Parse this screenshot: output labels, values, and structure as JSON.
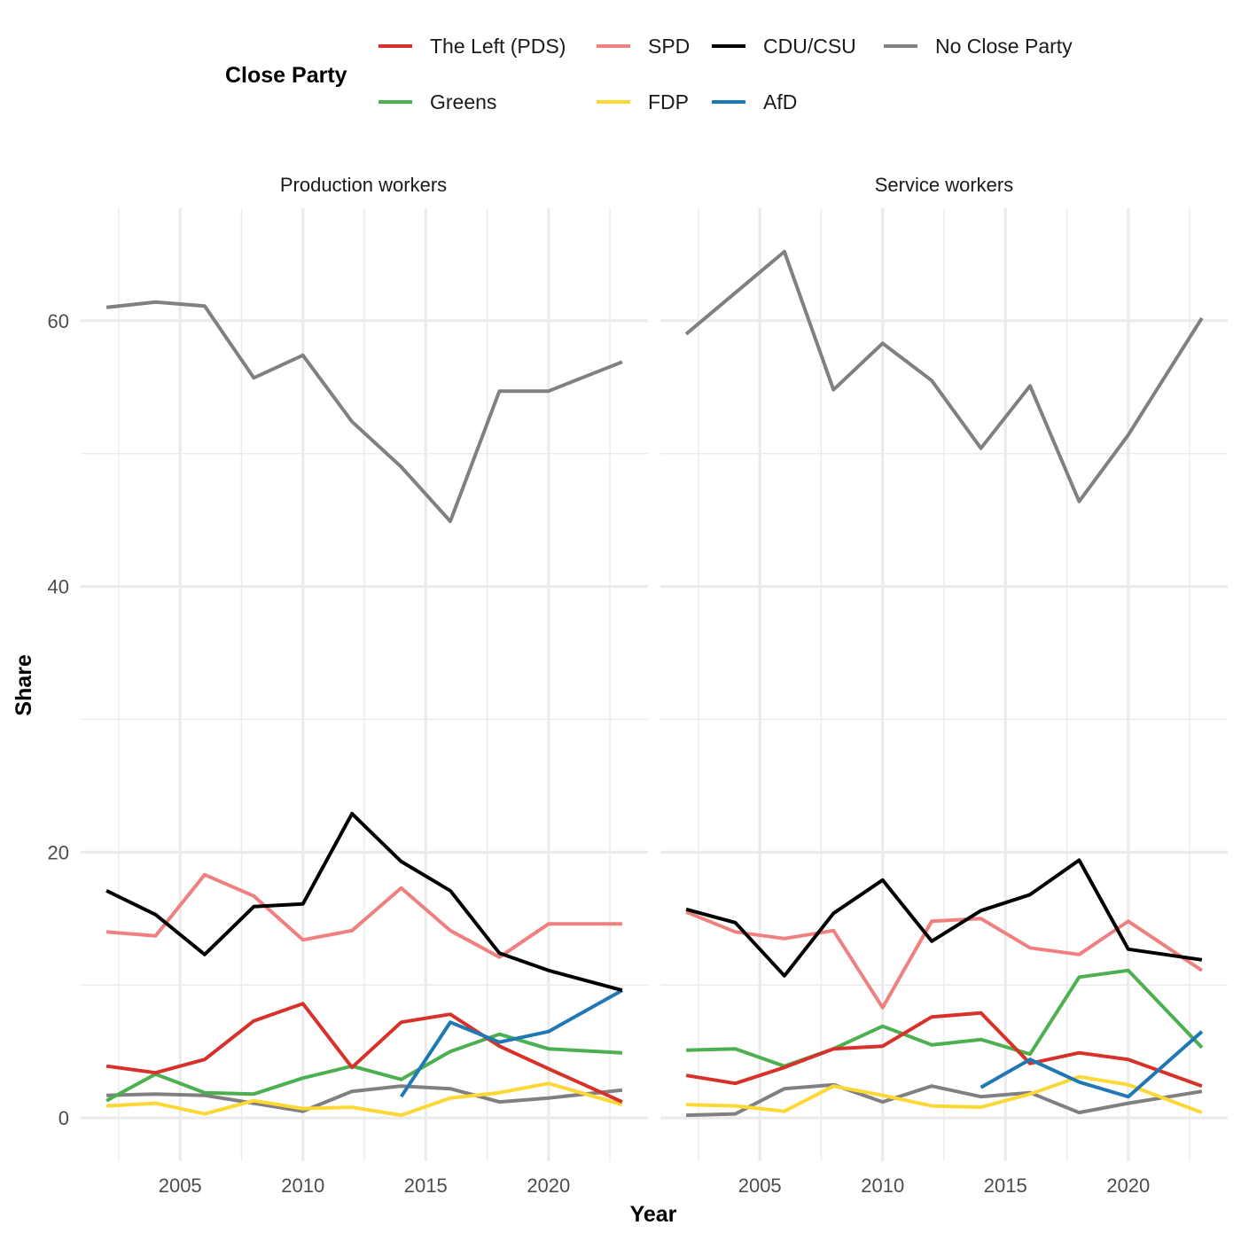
{
  "chart_data": {
    "type": "line",
    "title": "",
    "xlabel": "Year",
    "ylabel": "Share",
    "xlim": [
      2002,
      2023
    ],
    "ylim": [
      0,
      65.2
    ],
    "grid": true,
    "legend": {
      "title": "Close Party",
      "placement": "top",
      "entries": [
        {
          "name": "The Left (PDS)",
          "color": "#d7312a"
        },
        {
          "name": "SPD",
          "color": "#f08080"
        },
        {
          "name": "CDU/CSU",
          "color": "#000000"
        },
        {
          "name": "No Close Party",
          "color": "#808080"
        },
        {
          "name": "Greens",
          "color": "#4caf50"
        },
        {
          "name": "FDP",
          "color": "#fdd835"
        },
        {
          "name": "AfD",
          "color": "#1f78b4"
        }
      ]
    },
    "x_ticks": [
      "2005",
      "2010",
      "2015",
      "2020"
    ],
    "x_tick_values": [
      2005,
      2010,
      2015,
      2020
    ],
    "y_ticks": [
      "0",
      "20",
      "40",
      "60"
    ],
    "y_tick_values": [
      0,
      20,
      40,
      60
    ],
    "x": [
      2002,
      2004,
      2006,
      2008,
      2010,
      2012,
      2014,
      2016,
      2018,
      2020,
      2023
    ],
    "panels": [
      {
        "title": "Production workers",
        "series": [
          {
            "name": "No Close Party",
            "values": [
              61.0,
              61.4,
              61.1,
              55.7,
              57.4,
              52.4,
              49.0,
              44.9,
              54.7,
              54.7,
              56.9
            ]
          },
          {
            "name": "CDU/CSU",
            "values": [
              17.1,
              15.3,
              12.3,
              15.9,
              16.1,
              22.9,
              19.3,
              17.1,
              12.4,
              11.1,
              9.6
            ]
          },
          {
            "name": "SPD",
            "values": [
              14.0,
              13.7,
              18.3,
              16.7,
              13.4,
              14.1,
              17.3,
              14.1,
              12.1,
              14.6,
              14.6
            ]
          },
          {
            "name": "The Left (PDS)",
            "values": [
              3.9,
              3.4,
              4.4,
              7.3,
              8.6,
              3.8,
              7.2,
              7.8,
              5.4,
              3.7,
              1.2
            ]
          },
          {
            "name": "Greens",
            "values": [
              1.3,
              3.3,
              1.9,
              1.8,
              3.0,
              3.9,
              2.9,
              5.0,
              6.3,
              5.2,
              4.9
            ]
          },
          {
            "name": "FDP",
            "values": [
              0.9,
              1.1,
              0.3,
              1.3,
              0.7,
              0.8,
              0.2,
              1.5,
              1.9,
              2.6,
              1.0
            ]
          },
          {
            "name": "AfD",
            "values": [
              null,
              null,
              null,
              null,
              null,
              null,
              1.6,
              7.2,
              5.7,
              6.5,
              9.6
            ]
          },
          {
            "name": "No Close Party (low)",
            "legend_name": "No Close Party",
            "values": [
              1.7,
              1.8,
              1.7,
              1.1,
              0.5,
              2.0,
              2.4,
              2.2,
              1.2,
              1.5,
              2.1
            ]
          }
        ]
      },
      {
        "title": "Service workers",
        "series": [
          {
            "name": "No Close Party",
            "values": [
              59.0,
              62.1,
              65.2,
              54.8,
              58.3,
              55.5,
              50.4,
              55.1,
              46.4,
              51.4,
              60.2
            ]
          },
          {
            "name": "CDU/CSU",
            "values": [
              15.7,
              14.7,
              10.7,
              15.4,
              17.9,
              13.3,
              15.6,
              16.8,
              19.4,
              12.7,
              11.9
            ]
          },
          {
            "name": "SPD",
            "values": [
              15.5,
              14.0,
              13.5,
              14.1,
              8.3,
              14.8,
              15.0,
              12.8,
              12.3,
              14.8,
              11.1
            ]
          },
          {
            "name": "The Left (PDS)",
            "values": [
              3.2,
              2.6,
              3.8,
              5.2,
              5.4,
              7.6,
              7.9,
              4.1,
              4.9,
              4.4,
              2.4
            ]
          },
          {
            "name": "Greens",
            "values": [
              5.1,
              5.2,
              3.9,
              5.2,
              6.9,
              5.5,
              5.9,
              4.8,
              10.6,
              11.1,
              5.3
            ]
          },
          {
            "name": "FDP",
            "values": [
              1.0,
              0.9,
              0.5,
              2.4,
              1.7,
              0.9,
              0.8,
              1.8,
              3.1,
              2.5,
              0.4
            ]
          },
          {
            "name": "AfD",
            "values": [
              null,
              null,
              null,
              null,
              null,
              null,
              2.3,
              4.4,
              2.7,
              1.6,
              6.5
            ]
          },
          {
            "name": "No Close Party (low)",
            "legend_name": "No Close Party",
            "values": [
              0.2,
              0.3,
              2.2,
              2.5,
              1.2,
              2.4,
              1.6,
              1.9,
              0.4,
              1.1,
              2.0
            ]
          }
        ]
      }
    ]
  }
}
